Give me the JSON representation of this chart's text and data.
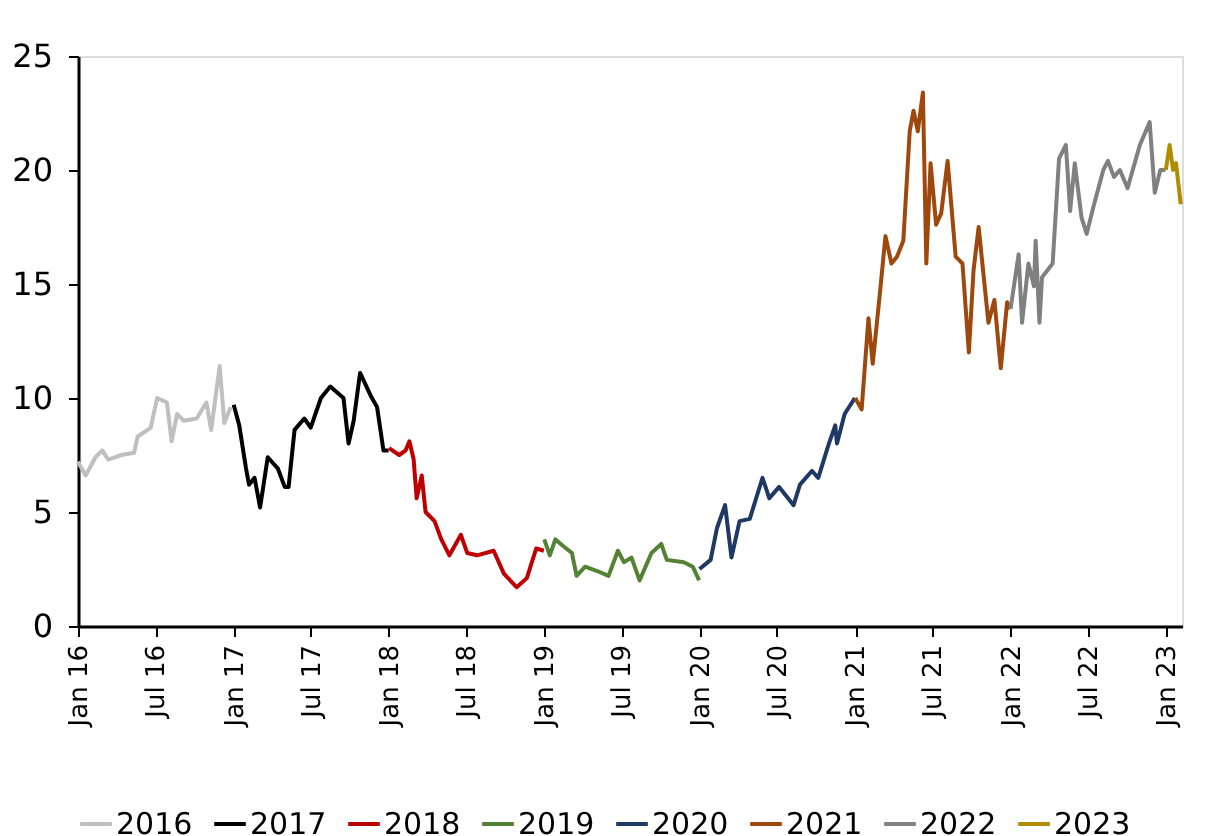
{
  "chart_data": {
    "type": "line",
    "xlim": [
      "2016-01-01",
      "2023-02-08"
    ],
    "xticks": [
      {
        "value": "2016-01-01",
        "label": "Jan 16"
      },
      {
        "value": "2016-07-01",
        "label": "Jul 16"
      },
      {
        "value": "2017-01-01",
        "label": "Jan 17"
      },
      {
        "value": "2017-07-01",
        "label": "Jul 17"
      },
      {
        "value": "2018-01-01",
        "label": "Jan 18"
      },
      {
        "value": "2018-07-01",
        "label": "Jul 18"
      },
      {
        "value": "2019-01-01",
        "label": "Jan 19"
      },
      {
        "value": "2019-07-01",
        "label": "Jul 19"
      },
      {
        "value": "2020-01-01",
        "label": "Jan 20"
      },
      {
        "value": "2020-07-01",
        "label": "Jul 20"
      },
      {
        "value": "2021-01-01",
        "label": "Jan 21"
      },
      {
        "value": "2021-07-01",
        "label": "Jul 21"
      },
      {
        "value": "2022-01-01",
        "label": "Jan 22"
      },
      {
        "value": "2022-07-01",
        "label": "Jul 22"
      },
      {
        "value": "2023-01-01",
        "label": "Jan 23"
      }
    ],
    "ylim": [
      0,
      25
    ],
    "yticks": [
      0,
      5,
      10,
      15,
      20,
      25
    ],
    "grid": false,
    "legend": "bottom",
    "line_style": "solid",
    "series": [
      {
        "name": "2016",
        "color": "#bfbfbf",
        "x": [
          "2016-01-01",
          "2016-01-19",
          "2016-02-11",
          "2016-02-27",
          "2016-03-12",
          "2016-04-12",
          "2016-05-12",
          "2016-05-20",
          "2016-06-20",
          "2016-07-05",
          "2016-07-28",
          "2016-08-08",
          "2016-08-21",
          "2016-09-06",
          "2016-10-06",
          "2016-10-29",
          "2016-11-09",
          "2016-11-29",
          "2016-12-10",
          "2016-12-25"
        ],
        "values": [
          7.2,
          6.6,
          7.4,
          7.7,
          7.3,
          7.5,
          7.6,
          8.3,
          8.7,
          10.0,
          9.8,
          8.1,
          9.3,
          9.0,
          9.1,
          9.8,
          8.6,
          11.4,
          8.9,
          9.6
        ]
      },
      {
        "name": "2017",
        "color": "#000000",
        "x": [
          "2017-01-01",
          "2017-01-14",
          "2017-01-30",
          "2017-02-06",
          "2017-02-19",
          "2017-03-04",
          "2017-03-22",
          "2017-04-15",
          "2017-05-01",
          "2017-05-10",
          "2017-05-24",
          "2017-06-16",
          "2017-07-01",
          "2017-07-25",
          "2017-08-16",
          "2017-09-16",
          "2017-09-28",
          "2017-10-10",
          "2017-10-25",
          "2017-11-19",
          "2017-12-04",
          "2017-12-19",
          "2017-12-31"
        ],
        "values": [
          9.7,
          8.8,
          6.9,
          6.2,
          6.5,
          5.2,
          7.4,
          6.9,
          6.1,
          6.1,
          8.6,
          9.1,
          8.7,
          10.0,
          10.5,
          10.0,
          8.0,
          9.0,
          11.1,
          10.1,
          9.6,
          7.7,
          7.7
        ]
      },
      {
        "name": "2018",
        "color": "#c00000",
        "x": [
          "2018-01-01",
          "2018-01-25",
          "2018-02-09",
          "2018-02-18",
          "2018-02-28",
          "2018-03-07",
          "2018-03-19",
          "2018-03-28",
          "2018-04-18",
          "2018-05-04",
          "2018-05-23",
          "2018-06-19",
          "2018-07-04",
          "2018-07-27",
          "2018-09-04",
          "2018-09-28",
          "2018-10-28",
          "2018-11-21",
          "2018-12-13",
          "2018-12-31"
        ],
        "values": [
          7.8,
          7.5,
          7.7,
          8.1,
          7.3,
          5.6,
          6.6,
          5.0,
          4.6,
          3.8,
          3.1,
          4.0,
          3.2,
          3.1,
          3.3,
          2.3,
          1.7,
          2.1,
          3.4,
          3.3
        ]
      },
      {
        "name": "2019",
        "color": "#548235",
        "x": [
          "2019-01-01",
          "2019-01-14",
          "2019-01-27",
          "2019-02-15",
          "2019-03-07",
          "2019-03-18",
          "2019-04-07",
          "2019-05-07",
          "2019-06-01",
          "2019-06-23",
          "2019-07-07",
          "2019-07-25",
          "2019-08-13",
          "2019-09-10",
          "2019-10-03",
          "2019-10-16",
          "2019-11-25",
          "2019-12-16",
          "2019-12-31"
        ],
        "values": [
          3.8,
          3.1,
          3.8,
          3.5,
          3.2,
          2.2,
          2.6,
          2.4,
          2.2,
          3.3,
          2.8,
          3.0,
          2.0,
          3.2,
          3.6,
          2.9,
          2.8,
          2.6,
          2.0
        ]
      },
      {
        "name": "2020",
        "color": "#203864",
        "x": [
          "2020-01-01",
          "2020-01-27",
          "2020-02-11",
          "2020-03-01",
          "2020-03-16",
          "2020-04-04",
          "2020-04-28",
          "2020-05-28",
          "2020-06-13",
          "2020-07-06",
          "2020-08-09",
          "2020-08-24",
          "2020-09-21",
          "2020-10-06",
          "2020-10-31",
          "2020-11-15",
          "2020-11-19",
          "2020-12-07",
          "2020-12-31"
        ],
        "values": [
          2.5,
          2.9,
          4.3,
          5.3,
          3.0,
          4.6,
          4.7,
          6.5,
          5.6,
          6.1,
          5.3,
          6.2,
          6.8,
          6.5,
          8.0,
          8.8,
          8.0,
          9.3,
          10.0
        ]
      },
      {
        "name": "2021",
        "color": "#9e480e",
        "x": [
          "2021-01-01",
          "2021-01-16",
          "2021-02-01",
          "2021-02-11",
          "2021-03-01",
          "2021-03-13",
          "2021-03-27",
          "2021-04-09",
          "2021-04-24",
          "2021-05-09",
          "2021-05-18",
          "2021-05-28",
          "2021-06-09",
          "2021-06-17",
          "2021-06-27",
          "2021-07-10",
          "2021-07-22",
          "2021-08-06",
          "2021-08-25",
          "2021-09-10",
          "2021-09-25",
          "2021-10-06",
          "2021-10-18",
          "2021-11-10",
          "2021-11-24",
          "2021-12-09",
          "2021-12-24",
          "2021-12-31"
        ],
        "values": [
          10.0,
          9.5,
          13.5,
          11.5,
          14.8,
          17.1,
          15.9,
          16.2,
          16.9,
          21.7,
          22.6,
          21.7,
          23.4,
          15.9,
          20.3,
          17.6,
          18.1,
          20.4,
          16.2,
          15.9,
          12.0,
          15.6,
          17.5,
          13.3,
          14.3,
          11.3,
          14.2,
          13.9
        ]
      },
      {
        "name": "2022",
        "color": "#808080",
        "x": [
          "2022-01-01",
          "2022-01-20",
          "2022-01-28",
          "2022-02-12",
          "2022-02-25",
          "2022-03-01",
          "2022-03-10",
          "2022-03-16",
          "2022-04-10",
          "2022-04-25",
          "2022-05-11",
          "2022-05-21",
          "2022-06-01",
          "2022-06-17",
          "2022-06-29",
          "2022-07-15",
          "2022-08-07",
          "2022-08-18",
          "2022-09-01",
          "2022-09-15",
          "2022-10-03",
          "2022-11-01",
          "2022-11-24",
          "2022-12-06",
          "2022-12-19",
          "2022-12-31"
        ],
        "values": [
          13.9,
          16.3,
          13.3,
          15.9,
          14.9,
          16.9,
          13.3,
          15.3,
          15.9,
          20.5,
          21.1,
          18.2,
          20.3,
          17.9,
          17.2,
          18.4,
          20.0,
          20.4,
          19.7,
          20.0,
          19.2,
          21.1,
          22.1,
          19.0,
          20.0,
          20.0
        ]
      },
      {
        "name": "2023",
        "color": "#b08c00",
        "x": [
          "2023-01-01",
          "2023-01-10",
          "2023-01-18",
          "2023-01-25",
          "2023-02-05"
        ],
        "values": [
          20.0,
          21.1,
          20.0,
          20.3,
          18.5
        ]
      }
    ]
  }
}
